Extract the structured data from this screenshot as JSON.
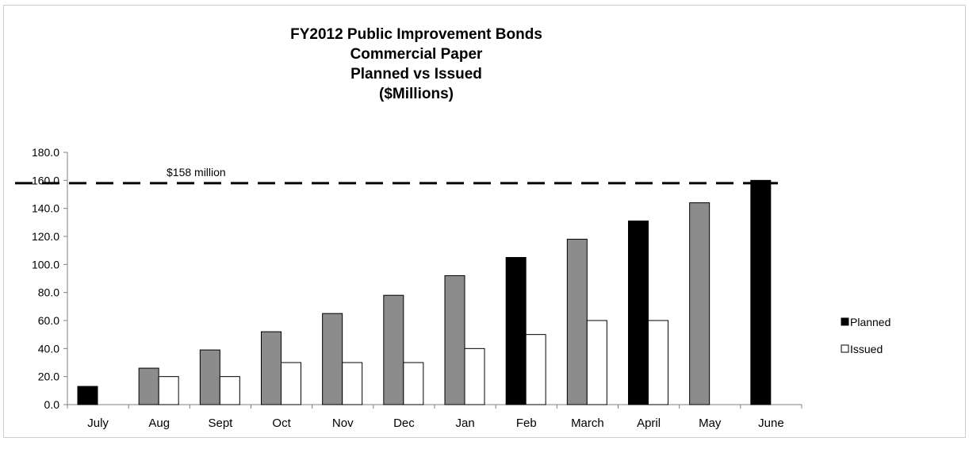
{
  "chart_data": {
    "type": "bar",
    "title_lines": [
      "FY2012 Public Improvement Bonds",
      "Commercial Paper",
      "Planned vs Issued",
      "($Millions)"
    ],
    "categories": [
      "July",
      "Aug",
      "Sept",
      "Oct",
      "Nov",
      "Dec",
      "Jan",
      "Feb",
      "March",
      "April",
      "May",
      "June"
    ],
    "series": [
      {
        "name": "Planned",
        "values": [
          13,
          26,
          39,
          52,
          65,
          78,
          92,
          105,
          118,
          131,
          144,
          160
        ],
        "colors": [
          "#000000",
          "#8c8c8c",
          "#8c8c8c",
          "#8c8c8c",
          "#8c8c8c",
          "#8c8c8c",
          "#8c8c8c",
          "#000000",
          "#8c8c8c",
          "#000000",
          "#8c8c8c",
          "#000000"
        ]
      },
      {
        "name": "Issued",
        "values": [
          null,
          20,
          20,
          30,
          30,
          30,
          40,
          50,
          60,
          60,
          null,
          null
        ],
        "color": "#ffffff"
      }
    ],
    "ylim": [
      0,
      180
    ],
    "yticks": [
      "0.0",
      "20.0",
      "40.0",
      "60.0",
      "80.0",
      "100.0",
      "120.0",
      "140.0",
      "160.0",
      "180.0"
    ],
    "reference_line": {
      "value": 158,
      "label": "$158 million",
      "style": "dashed"
    },
    "legend": {
      "position": "right",
      "planned_color": "#000000",
      "issued_color": "#ffffff"
    },
    "grid": false
  }
}
